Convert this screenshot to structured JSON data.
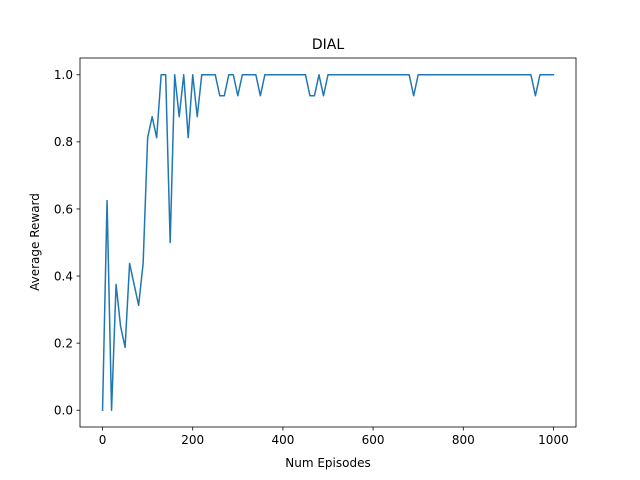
{
  "chart_data": {
    "type": "line",
    "title": "DIAL",
    "xlabel": "Num Episodes",
    "ylabel": "Average Reward",
    "xlim": [
      -50,
      1050
    ],
    "ylim": [
      -0.05,
      1.05
    ],
    "x_ticks": [
      0,
      200,
      400,
      600,
      800,
      1000
    ],
    "y_ticks": [
      0.0,
      0.2,
      0.4,
      0.6,
      0.8,
      1.0
    ],
    "x_tick_labels": [
      "0",
      "200",
      "400",
      "600",
      "800",
      "1000"
    ],
    "y_tick_labels": [
      "0.0",
      "0.2",
      "0.4",
      "0.6",
      "0.8",
      "1.0"
    ],
    "grid": false,
    "series": [
      {
        "color": "#1f77b4",
        "x": [
          0,
          10,
          20,
          30,
          40,
          50,
          60,
          70,
          80,
          90,
          100,
          110,
          120,
          130,
          140,
          150,
          160,
          170,
          180,
          190,
          200,
          210,
          220,
          230,
          240,
          250,
          260,
          270,
          280,
          290,
          300,
          310,
          320,
          330,
          340,
          350,
          360,
          370,
          380,
          390,
          400,
          410,
          420,
          430,
          440,
          450,
          460,
          470,
          480,
          490,
          500,
          510,
          520,
          530,
          540,
          550,
          560,
          570,
          580,
          590,
          600,
          610,
          620,
          630,
          640,
          650,
          660,
          670,
          680,
          690,
          700,
          710,
          720,
          730,
          740,
          750,
          760,
          770,
          780,
          790,
          800,
          810,
          820,
          830,
          840,
          850,
          860,
          870,
          880,
          890,
          900,
          910,
          920,
          930,
          940,
          950,
          960,
          970,
          980,
          990,
          1000
        ],
        "values": [
          0.0,
          0.625,
          0.0,
          0.375,
          0.25,
          0.1875,
          0.4375,
          0.375,
          0.3125,
          0.4375,
          0.8125,
          0.875,
          0.8125,
          1.0,
          1.0,
          0.5,
          1.0,
          0.875,
          1.0,
          0.8125,
          1.0,
          0.875,
          1.0,
          1.0,
          1.0,
          1.0,
          0.9375,
          0.9375,
          1.0,
          1.0,
          0.9375,
          1.0,
          1.0,
          1.0,
          1.0,
          0.9375,
          1.0,
          1.0,
          1.0,
          1.0,
          1.0,
          1.0,
          1.0,
          1.0,
          1.0,
          1.0,
          0.9375,
          0.9375,
          1.0,
          0.9375,
          1.0,
          1.0,
          1.0,
          1.0,
          1.0,
          1.0,
          1.0,
          1.0,
          1.0,
          1.0,
          1.0,
          1.0,
          1.0,
          1.0,
          1.0,
          1.0,
          1.0,
          1.0,
          1.0,
          0.9375,
          1.0,
          1.0,
          1.0,
          1.0,
          1.0,
          1.0,
          1.0,
          1.0,
          1.0,
          1.0,
          1.0,
          1.0,
          1.0,
          1.0,
          1.0,
          1.0,
          1.0,
          1.0,
          1.0,
          1.0,
          1.0,
          1.0,
          1.0,
          1.0,
          1.0,
          1.0,
          0.9375,
          1.0,
          1.0,
          1.0,
          1.0
        ]
      }
    ]
  }
}
